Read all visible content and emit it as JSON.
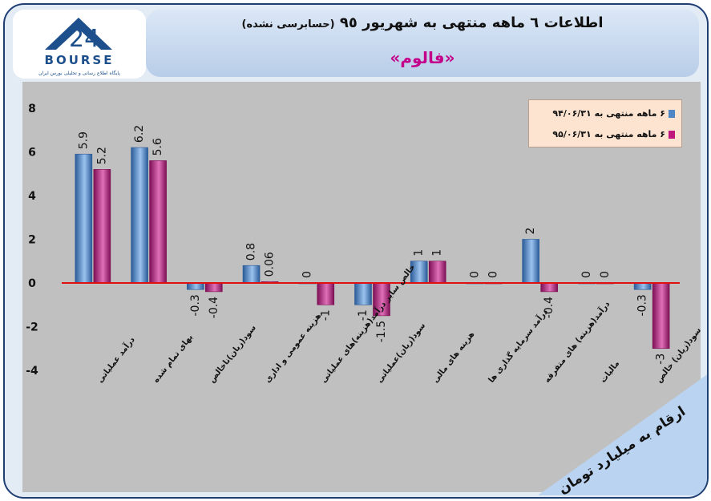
{
  "header": {
    "title": "اطلاعات ٦ ماهه منتهی به شهریور ٩٥",
    "subtitle": "(حسابرسی نشده)",
    "company": "«فالوم»"
  },
  "logo": {
    "brand": "BOURSE",
    "number": "24",
    "tagline": "پایگاه اطلاع رسانی و تحلیلی بورس ایران",
    "icon": "bourse24-logo-icon"
  },
  "unit_note": "ارقام به میلیارد تومان",
  "colors": {
    "series1": "#4f86c6",
    "series2": "#c0187f",
    "zero_line": "#e01010",
    "plot_bg": "#c0c0c0",
    "legend_bg": "#fce4d0",
    "company": "#c4008a"
  },
  "chart_data": {
    "type": "bar",
    "categories": [
      "درآمد عملیاتی",
      "بهای تمام شده",
      "سود(زیان)ناخالص",
      "هزینه عمومی و اداری",
      "خالص سایر درآمد(هزینه)های عملیاتی",
      "سود(زیان)عملیاتی",
      "هزینه های مالی",
      "درآمد سرمایه گذاری ها",
      "درآمد(هزینه) های متفرقه",
      "مالیات",
      "سود(زیان) خالص"
    ],
    "series": [
      {
        "name": "۶ ماهه منتهی به ۹۴/۰۶/۳۱",
        "values": [
          5.9,
          6.2,
          -0.3,
          0.8,
          0,
          -1,
          1,
          0,
          2,
          0,
          -0.3
        ],
        "labels": [
          "5.9",
          "6.2",
          "-0.3",
          "0.8",
          "0",
          "-1",
          "1",
          "0",
          "2",
          "0",
          "-0.3"
        ]
      },
      {
        "name": "۶ ماهه منتهی به ۹۵/۰۶/۳۱",
        "values": [
          5.2,
          5.6,
          -0.4,
          0.06,
          -1,
          -1.5,
          1,
          0,
          -0.4,
          0,
          -3
        ],
        "labels": [
          "5.2",
          "5.6",
          "-0.4",
          "0.06",
          "-1",
          "-1.5",
          "1",
          "0",
          "-0.4",
          "0",
          "-3"
        ]
      }
    ],
    "ylim": [
      -4,
      8
    ],
    "yticks": [
      "-4",
      "-2",
      "0",
      "2",
      "4",
      "6",
      "8"
    ],
    "grid": false,
    "legend_position": "top-right"
  }
}
